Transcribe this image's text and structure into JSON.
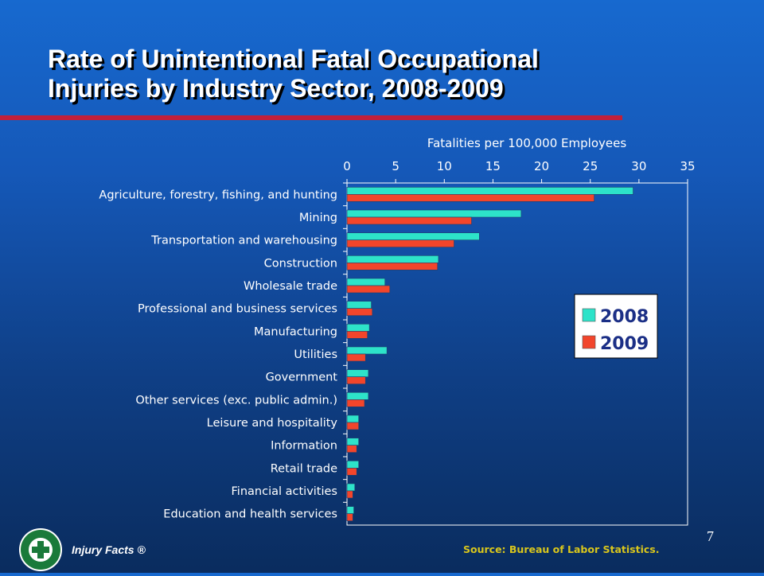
{
  "slide": {
    "title_line1": "Rate of Unintentional Fatal Occupational",
    "title_line2": "Injuries by Industry Sector, 2008-2009",
    "page_number": "7",
    "source": "Source: Bureau of Labor Statistics.",
    "brand": "Injury Facts ®",
    "logo_text": "NATIONAL SAFETY COUNCIL"
  },
  "colors": {
    "title_rule": "#c0203a",
    "series_2008": "#2de3c9",
    "series_2009": "#f2452b",
    "source_text": "#d9c61c"
  },
  "chart_data": {
    "type": "bar",
    "orientation": "horizontal",
    "xlabel": "Fatalities per 100,000 Employees",
    "xlim": [
      0,
      35
    ],
    "xticks": [
      0,
      5,
      10,
      15,
      20,
      25,
      30,
      35
    ],
    "axis_position": "top",
    "grid": false,
    "legend_position": "right",
    "categories": [
      "Agriculture, forestry, fishing, and hunting",
      "Mining",
      "Transportation and warehousing",
      "Construction",
      "Wholesale trade",
      "Professional and business services",
      "Manufacturing",
      "Utilities",
      "Government",
      "Other services (exc. public admin.)",
      "Leisure and hospitality",
      "Information",
      "Retail trade",
      "Financial activities",
      "Education and health services"
    ],
    "series": [
      {
        "name": "2008",
        "color": "#2de3c9",
        "values": [
          29.4,
          17.9,
          13.6,
          9.4,
          3.9,
          2.5,
          2.3,
          4.1,
          2.2,
          2.2,
          1.2,
          1.2,
          1.2,
          0.8,
          0.7
        ]
      },
      {
        "name": "2009",
        "color": "#f2452b",
        "values": [
          25.4,
          12.8,
          11.0,
          9.3,
          4.4,
          2.6,
          2.1,
          1.9,
          1.9,
          1.8,
          1.2,
          1.0,
          1.0,
          0.6,
          0.6
        ]
      }
    ]
  }
}
